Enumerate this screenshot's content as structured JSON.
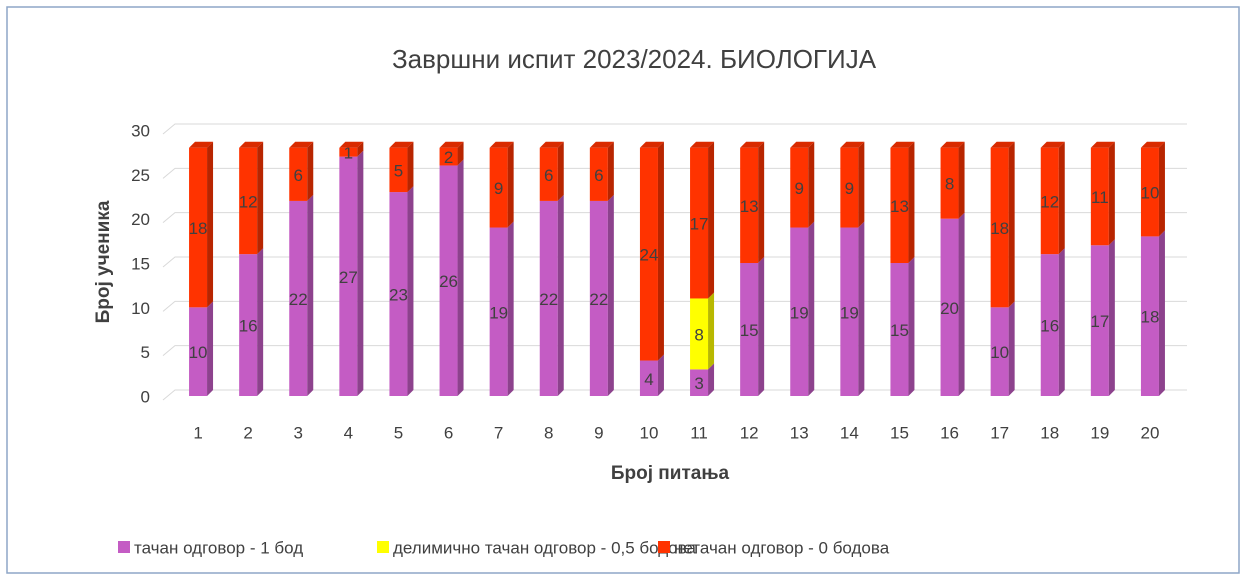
{
  "chart_data": {
    "type": "bar",
    "stacked": true,
    "title": "Завршни испит 2023/2024. БИОЛОГИЈА",
    "x_label": "Број питања",
    "y_label": "Број ученика",
    "categories": [
      "1",
      "2",
      "3",
      "4",
      "5",
      "6",
      "7",
      "8",
      "9",
      "10",
      "11",
      "12",
      "13",
      "14",
      "15",
      "16",
      "17",
      "18",
      "19",
      "20"
    ],
    "series": [
      {
        "name": "тачан одговор - 1 бод",
        "color": "#c45cc4",
        "values": [
          10,
          16,
          22,
          27,
          23,
          26,
          19,
          22,
          22,
          4,
          3,
          15,
          19,
          19,
          15,
          20,
          10,
          16,
          17,
          18
        ]
      },
      {
        "name": "делимично тачан одговор - 0,5 бодова",
        "color": "#ffff00",
        "values": [
          null,
          null,
          null,
          null,
          null,
          null,
          null,
          null,
          null,
          null,
          8,
          null,
          null,
          null,
          null,
          null,
          null,
          null,
          null,
          null
        ]
      },
      {
        "name": "нетачан одговор - 0 бодова",
        "color": "#ff3300",
        "values": [
          18,
          12,
          6,
          1,
          5,
          2,
          9,
          6,
          6,
          24,
          17,
          13,
          9,
          9,
          13,
          8,
          18,
          12,
          11,
          10
        ]
      }
    ],
    "ylim": [
      0,
      30
    ],
    "yticks": [
      0,
      5,
      10,
      15,
      20,
      25,
      30
    ],
    "grid": true,
    "legend": "bottom"
  }
}
